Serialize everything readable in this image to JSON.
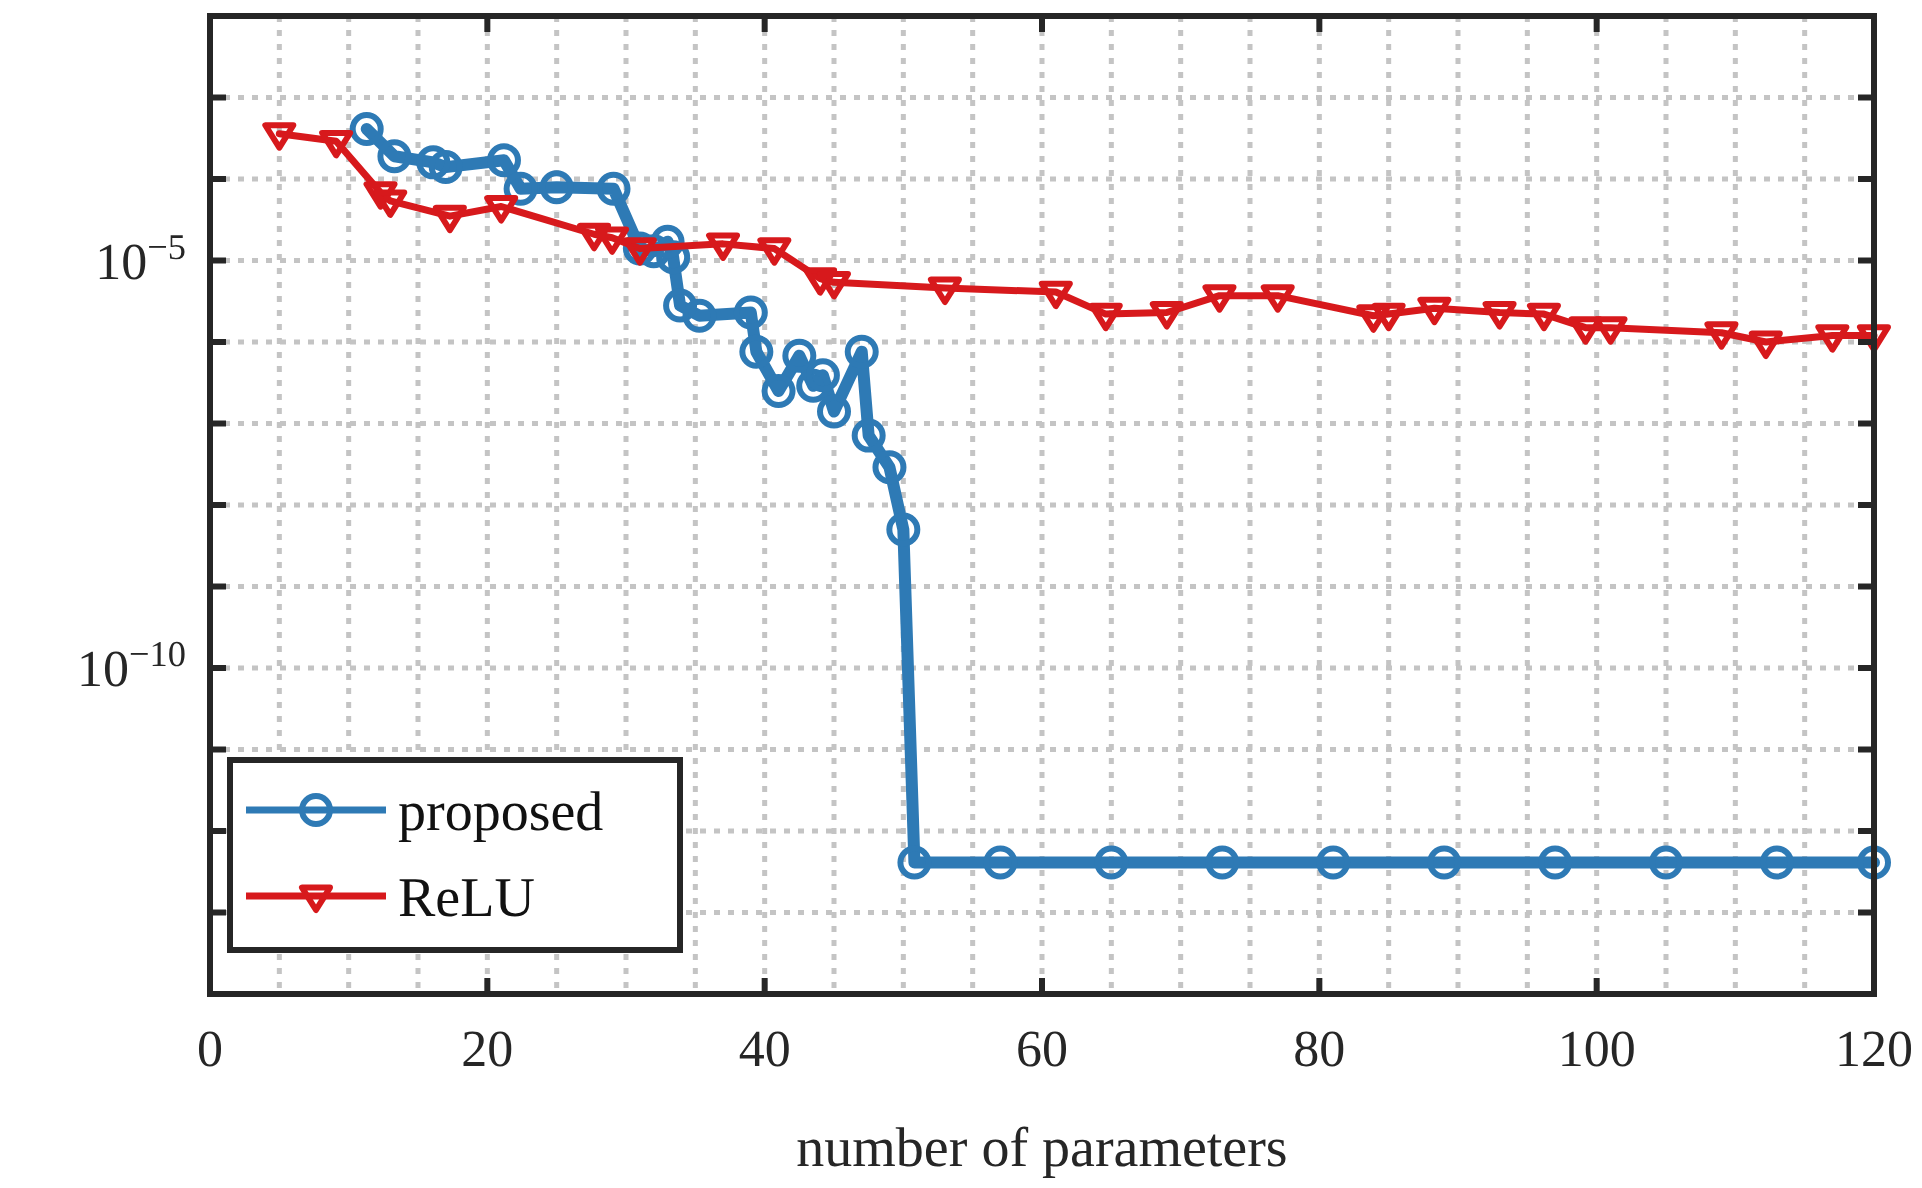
{
  "chart_data": {
    "type": "line",
    "xlabel": "number of parameters",
    "xlim": [
      0,
      120
    ],
    "xticks": [
      0,
      {
        "value": 5,
        "label": null
      },
      {
        "value": 10,
        "label": null
      },
      {
        "value": 15,
        "label": null
      },
      20,
      {
        "value": 25,
        "label": null
      },
      {
        "value": 30,
        "label": null
      },
      {
        "value": 35,
        "label": null
      },
      40,
      {
        "value": 45,
        "label": null
      },
      {
        "value": 50,
        "label": null
      },
      {
        "value": 55,
        "label": null
      },
      60,
      {
        "value": 65,
        "label": null
      },
      {
        "value": 70,
        "label": null
      },
      {
        "value": 75,
        "label": null
      },
      80,
      {
        "value": 85,
        "label": null
      },
      {
        "value": 90,
        "label": null
      },
      {
        "value": 95,
        "label": null
      },
      100,
      {
        "value": 105,
        "label": null
      },
      {
        "value": 110,
        "label": null
      },
      {
        "value": 115,
        "label": null
      },
      120
    ],
    "ylim": [
      1e-14,
      0.01
    ],
    "log": "y",
    "yticks": [
      {
        "value": 0.001,
        "label": null
      },
      {
        "value": 0.0001,
        "label": null
      },
      {
        "value": 1e-05,
        "label": "10$^{−5}$"
      },
      {
        "value": 1e-06,
        "label": null
      },
      {
        "value": 1e-07,
        "label": null
      },
      {
        "value": 1e-08,
        "label": null
      },
      {
        "value": 1e-09,
        "label": null
      },
      {
        "value": 1e-10,
        "label": "10$^{−10}$"
      },
      {
        "value": 1e-11,
        "label": null
      },
      {
        "value": 1e-12,
        "label": null
      },
      {
        "value": 1e-13,
        "label": null
      }
    ],
    "grid": true,
    "legend": "bottom left",
    "line_style": "solid",
    "series": [
      {
        "name": "proposed",
        "color": "#2e7ab5",
        "marker": "circle",
        "x": [
          11.3,
          13.3,
          16.1,
          17,
          21.2,
          22.4,
          25,
          29.1,
          31,
          32,
          33,
          33.4,
          33.9,
          35.3,
          39,
          39.4,
          41,
          42.5,
          43.5,
          44.2,
          45,
          47,
          47.5,
          49,
          50,
          50.8,
          57,
          65,
          73,
          81,
          89,
          97,
          105,
          113,
          120
        ],
        "values": [
          0.00041,
          0.00019,
          0.00016,
          0.00014,
          0.00017,
          7.6e-05,
          7.9e-05,
          7.6e-05,
          1.4e-05,
          1.3e-05,
          1.7e-05,
          1.1e-05,
          2.8e-06,
          2.1e-06,
          2.3e-06,
          7.6e-07,
          2.5e-07,
          6.8e-07,
          2.9e-07,
          3.9e-07,
          1.4e-07,
          7.6e-07,
          7.1e-08,
          2.9e-08,
          5e-09,
          4.1e-13,
          4.1e-13,
          4.1e-13,
          4.1e-13,
          4.1e-13,
          4.1e-13,
          4.1e-13,
          4.1e-13,
          4.1e-13,
          4.1e-13
        ]
      },
      {
        "name": "ReLU",
        "color": "#d7191c",
        "marker": "triangle",
        "x": [
          5,
          9.1,
          12.3,
          13,
          17.3,
          21,
          27.7,
          29,
          31,
          37,
          40.7,
          44,
          45,
          53,
          61,
          64.6,
          69,
          72.8,
          77,
          83.9,
          85,
          88.3,
          93,
          96.2,
          99.2,
          101,
          109,
          112.2,
          117,
          120
        ],
        "values": [
          0.00036,
          0.00029,
          6.8e-05,
          5.4e-05,
          3.5e-05,
          4.6e-05,
          2.1e-05,
          1.9e-05,
          1.4e-05,
          1.6e-05,
          1.4e-05,
          6e-06,
          5.4e-06,
          4.6e-06,
          4.1e-06,
          2.2e-06,
          2.3e-06,
          3.7e-06,
          3.7e-06,
          2.1e-06,
          2.2e-06,
          2.6e-06,
          2.3e-06,
          2.2e-06,
          1.5e-06,
          1.5e-06,
          1.3e-06,
          1e-06,
          1.2e-06,
          1.2e-06
        ]
      }
    ]
  }
}
